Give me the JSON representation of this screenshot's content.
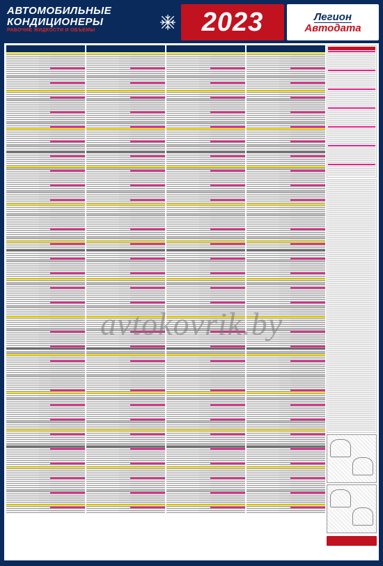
{
  "header": {
    "title_line1": "АВТОМОБИЛЬНЫЕ",
    "title_line2": "КОНДИЦИОНЕРЫ",
    "subtitle": "РАБОЧИЕ ЖИДКОСТИ И ОБЪЕМЫ",
    "year": "2023",
    "logo_line1": "Легион",
    "logo_line2": "Автодата"
  },
  "watermark": "avtokovrik.by",
  "colors": {
    "navy": "#0a2a5c",
    "red": "#c1121f",
    "yellow": "#ffe600",
    "magenta": "#e91e8c",
    "grey": "#bdbdbd"
  },
  "layout": {
    "data_columns": 4,
    "rows_per_column": 220,
    "side_column": true
  },
  "column_schema": [
    "model",
    "year",
    "refrigerant_g",
    "oil_ml"
  ],
  "row_patterns": {
    "brand_header_every": 18,
    "magenta_highlight_mod": 7,
    "grey_band_mod": 11,
    "dark_band_mod": 47
  },
  "side_panel": {
    "legend_lines": 60,
    "pink_legend_mod": 9,
    "diagrams": 2,
    "has_red_footer": true
  }
}
